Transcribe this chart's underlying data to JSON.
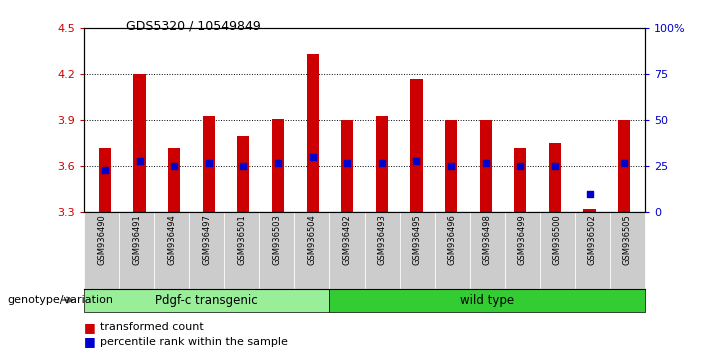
{
  "title": "GDS5320 / 10549849",
  "samples": [
    "GSM936490",
    "GSM936491",
    "GSM936494",
    "GSM936497",
    "GSM936501",
    "GSM936503",
    "GSM936504",
    "GSM936492",
    "GSM936493",
    "GSM936495",
    "GSM936496",
    "GSM936498",
    "GSM936499",
    "GSM936500",
    "GSM936502",
    "GSM936505"
  ],
  "transformed_count": [
    3.72,
    4.2,
    3.72,
    3.93,
    3.8,
    3.91,
    4.33,
    3.9,
    3.93,
    4.17,
    3.9,
    3.9,
    3.72,
    3.75,
    3.32,
    3.9
  ],
  "percentile_rank_pct": [
    23,
    28,
    25,
    27,
    25,
    27,
    30,
    27,
    27,
    28,
    25,
    27,
    25,
    25,
    10,
    27
  ],
  "bar_bottom": 3.3,
  "ylim": [
    3.3,
    4.5
  ],
  "y2lim": [
    0,
    100
  ],
  "yticks": [
    3.3,
    3.6,
    3.9,
    4.2,
    4.5
  ],
  "y2ticks": [
    0,
    25,
    50,
    75,
    100
  ],
  "bar_color": "#cc0000",
  "dot_color": "#0000cc",
  "group1_label": "Pdgf-c transgenic",
  "group1_indices": [
    0,
    1,
    2,
    3,
    4,
    5,
    6
  ],
  "group1_color": "#99ee99",
  "group2_label": "wild type",
  "group2_indices": [
    7,
    8,
    9,
    10,
    11,
    12,
    13,
    14,
    15
  ],
  "group2_color": "#33cc33",
  "xlabel_genotype": "genotype/variation",
  "legend_red": "transformed count",
  "legend_blue": "percentile rank within the sample",
  "bar_width": 0.35
}
